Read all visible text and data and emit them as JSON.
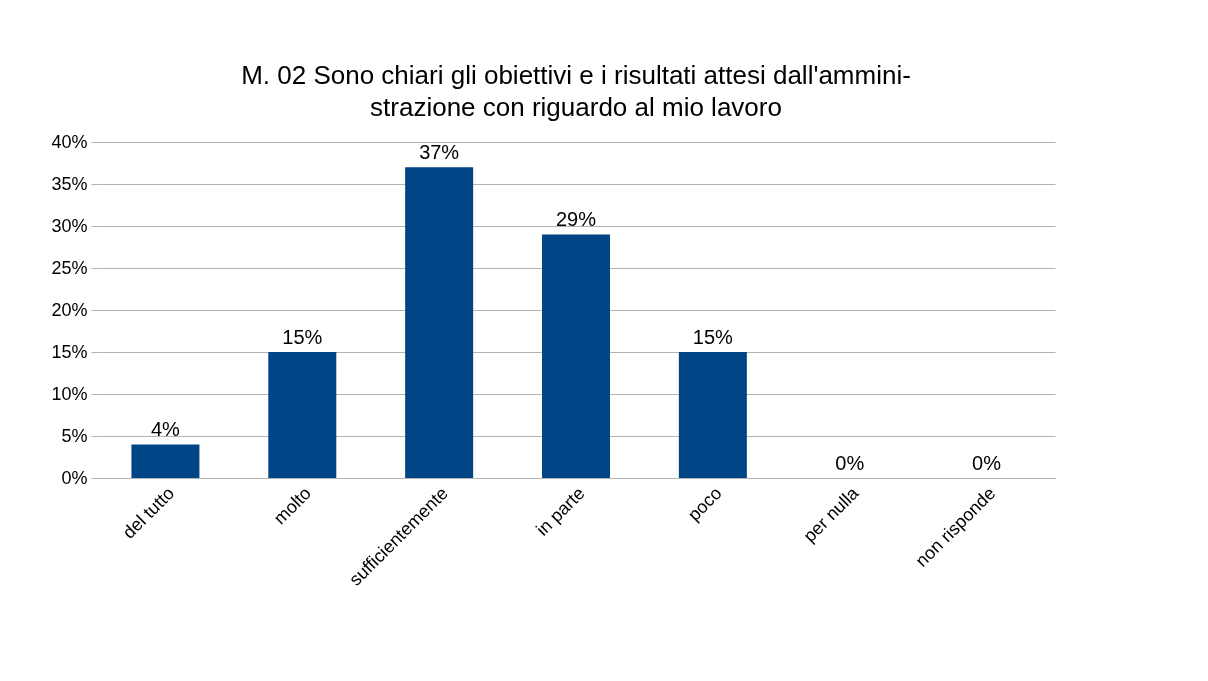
{
  "chart_data": {
    "type": "bar",
    "title": "M. 02 Sono chiari gli obiettivi e i risultati attesi dall'ammini-\nstrazione con riguardo al mio lavoro",
    "categories": [
      "del tutto",
      "molto",
      "sufficientemente",
      "in parte",
      "poco",
      "per nulla",
      "non risponde"
    ],
    "values": [
      4,
      15,
      37,
      29,
      15,
      0,
      0
    ],
    "value_labels": [
      "4%",
      "15%",
      "37%",
      "29%",
      "15%",
      "0%",
      "0%"
    ],
    "color": "#004586",
    "ylim": [
      0,
      40
    ],
    "yticks": [
      {
        "value": 0,
        "label": "0%"
      },
      {
        "value": 5,
        "label": "5%"
      },
      {
        "value": 10,
        "label": "10%"
      },
      {
        "value": 15,
        "label": "15%"
      },
      {
        "value": 20,
        "label": "20%"
      },
      {
        "value": 25,
        "label": "25%"
      },
      {
        "value": 30,
        "label": "30%"
      },
      {
        "value": 35,
        "label": "35%"
      },
      {
        "value": 40,
        "label": "40%"
      }
    ],
    "grid": "y"
  }
}
